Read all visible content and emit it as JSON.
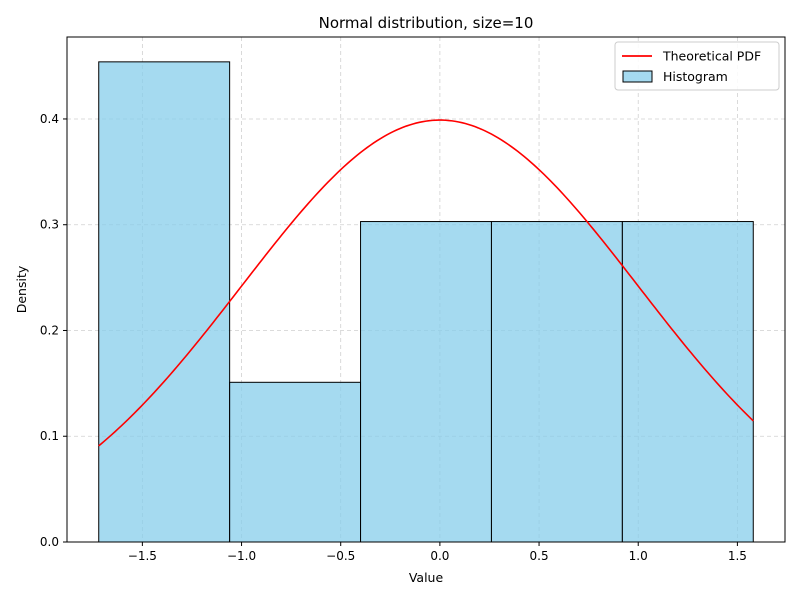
{
  "chart_data": {
    "type": "bar",
    "title": "Normal distribution, size=10",
    "xlabel": "Value",
    "ylabel": "Density",
    "xlim": [
      -1.88,
      1.74
    ],
    "ylim": [
      0,
      0.4775
    ],
    "grid": true,
    "legend_position": "top-right",
    "xticks": [
      -1.5,
      -1.0,
      -0.5,
      0.0,
      0.5,
      1.0,
      1.5
    ],
    "xtick_labels": [
      "−1.5",
      "−1.0",
      "−0.5",
      "0.0",
      "0.5",
      "1.0",
      "1.5"
    ],
    "yticks": [
      0.0,
      0.1,
      0.2,
      0.3,
      0.4
    ],
    "ytick_labels": [
      "0.0",
      "0.1",
      "0.2",
      "0.3",
      "0.4"
    ],
    "histogram": {
      "name": "Histogram",
      "bins": [
        {
          "start": -1.72,
          "end": -1.06,
          "density": 0.454
        },
        {
          "start": -1.06,
          "end": -0.4,
          "density": 0.151
        },
        {
          "start": -0.4,
          "end": 0.26,
          "density": 0.303
        },
        {
          "start": 0.26,
          "end": 0.92,
          "density": 0.303
        },
        {
          "start": 0.92,
          "end": 1.58,
          "density": 0.303
        }
      ],
      "fill_color": "#87CEEB",
      "edge_color": "#000000"
    },
    "pdf": {
      "name": "Theoretical PDF",
      "distribution": "normal",
      "mean": 0,
      "std": 1,
      "x_range": [
        -1.72,
        1.58
      ],
      "color": "#ff0000"
    }
  }
}
